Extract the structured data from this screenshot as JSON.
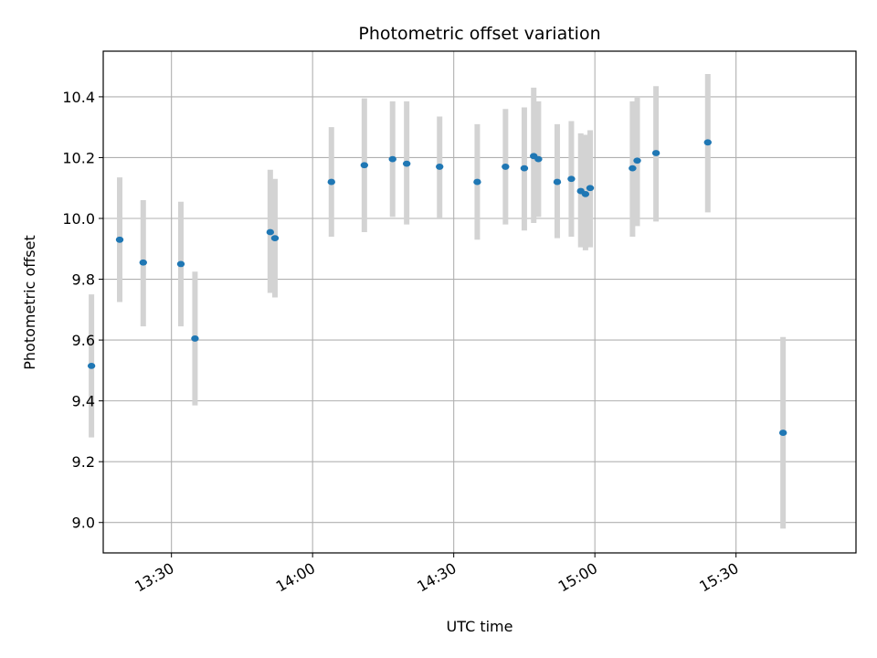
{
  "chart_data": {
    "type": "scatter",
    "title": "Photometric offset variation",
    "xlabel": "UTC time",
    "ylabel": "Photometric offset",
    "x_tick_labels": [
      "13:30",
      "14:00",
      "14:30",
      "15:00",
      "15:30"
    ],
    "x_tick_minutes": [
      810,
      840,
      870,
      900,
      930
    ],
    "xlim_minutes": [
      795.5,
      955.5
    ],
    "ylim": [
      8.9,
      10.55
    ],
    "y_ticks": [
      9.0,
      9.2,
      9.4,
      9.6,
      9.8,
      10.0,
      10.2,
      10.4
    ],
    "y_tick_labels": [
      "9.0",
      "9.2",
      "9.4",
      "9.6",
      "9.8",
      "10.0",
      "10.2",
      "10.4"
    ],
    "grid": true,
    "colors": {
      "point": "#1f77b4",
      "errorbar": "#d3d3d3",
      "grid": "#b0b0b0"
    },
    "series": [
      {
        "points": [
          {
            "t": "13:13",
            "y": 9.515,
            "lo": 9.28,
            "hi": 9.75
          },
          {
            "t": "13:19",
            "y": 9.93,
            "lo": 9.725,
            "hi": 10.135
          },
          {
            "t": "13:24",
            "y": 9.855,
            "lo": 9.645,
            "hi": 10.06
          },
          {
            "t": "13:32",
            "y": 9.85,
            "lo": 9.645,
            "hi": 10.055
          },
          {
            "t": "13:35",
            "y": 9.605,
            "lo": 9.385,
            "hi": 9.825
          },
          {
            "t": "13:51",
            "y": 9.955,
            "lo": 9.755,
            "hi": 10.16
          },
          {
            "t": "13:52",
            "y": 9.935,
            "lo": 9.74,
            "hi": 10.13
          },
          {
            "t": "14:04",
            "y": 10.12,
            "lo": 9.94,
            "hi": 10.3
          },
          {
            "t": "14:11",
            "y": 10.175,
            "lo": 9.955,
            "hi": 10.395
          },
          {
            "t": "14:17",
            "y": 10.195,
            "lo": 10.005,
            "hi": 10.385
          },
          {
            "t": "14:20",
            "y": 10.18,
            "lo": 9.98,
            "hi": 10.385
          },
          {
            "t": "14:27",
            "y": 10.17,
            "lo": 10.0,
            "hi": 10.335
          },
          {
            "t": "14:35",
            "y": 10.12,
            "lo": 9.93,
            "hi": 10.31
          },
          {
            "t": "14:41",
            "y": 10.17,
            "lo": 9.98,
            "hi": 10.36
          },
          {
            "t": "14:45",
            "y": 10.165,
            "lo": 9.96,
            "hi": 10.365
          },
          {
            "t": "14:47",
            "y": 10.205,
            "lo": 9.985,
            "hi": 10.43
          },
          {
            "t": "14:48",
            "y": 10.195,
            "lo": 10.005,
            "hi": 10.385
          },
          {
            "t": "14:52",
            "y": 10.12,
            "lo": 9.935,
            "hi": 10.31
          },
          {
            "t": "14:55",
            "y": 10.13,
            "lo": 9.94,
            "hi": 10.32
          },
          {
            "t": "14:57",
            "y": 10.09,
            "lo": 9.905,
            "hi": 10.28
          },
          {
            "t": "14:58",
            "y": 10.08,
            "lo": 9.895,
            "hi": 10.275
          },
          {
            "t": "14:59",
            "y": 10.1,
            "lo": 9.905,
            "hi": 10.29
          },
          {
            "t": "15:08",
            "y": 10.165,
            "lo": 9.94,
            "hi": 10.385
          },
          {
            "t": "15:09",
            "y": 10.19,
            "lo": 9.975,
            "hi": 10.4
          },
          {
            "t": "15:13",
            "y": 10.215,
            "lo": 9.99,
            "hi": 10.435
          },
          {
            "t": "15:24",
            "y": 10.25,
            "lo": 10.02,
            "hi": 10.475
          },
          {
            "t": "15:40",
            "y": 9.295,
            "lo": 8.98,
            "hi": 9.61
          }
        ]
      }
    ]
  }
}
